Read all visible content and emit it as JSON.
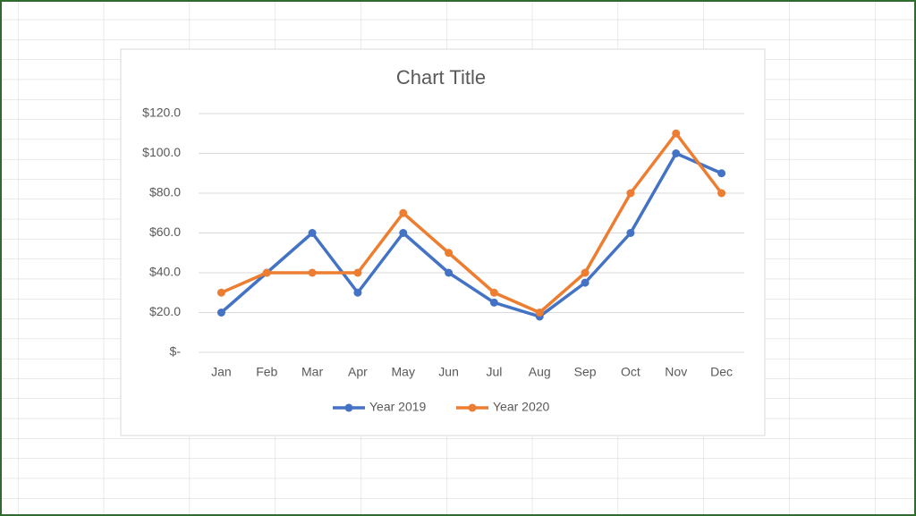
{
  "chart_data": {
    "type": "line",
    "title": "Chart Title",
    "categories": [
      "Jan",
      "Feb",
      "Mar",
      "Apr",
      "May",
      "Jun",
      "Jul",
      "Aug",
      "Sep",
      "Oct",
      "Nov",
      "Dec"
    ],
    "series": [
      {
        "name": "Year 2019",
        "color": "#4472c4",
        "values": [
          20,
          40,
          60,
          30,
          60,
          40,
          25,
          18,
          35,
          60,
          100,
          90
        ]
      },
      {
        "name": "Year 2020",
        "color": "#ed7d31",
        "values": [
          30,
          40,
          40,
          40,
          70,
          50,
          30,
          20,
          40,
          80,
          110,
          80
        ]
      }
    ],
    "ylim": [
      0,
      120
    ],
    "yticks": [
      {
        "value": 0,
        "label": "$-"
      },
      {
        "value": 20,
        "label": "$20.0"
      },
      {
        "value": 40,
        "label": "$40.0"
      },
      {
        "value": 60,
        "label": "$60.0"
      },
      {
        "value": 80,
        "label": "$80.0"
      },
      {
        "value": 100,
        "label": "$100.0"
      },
      {
        "value": 120,
        "label": "$120.0"
      }
    ],
    "grid": true,
    "legend": "bottom"
  }
}
